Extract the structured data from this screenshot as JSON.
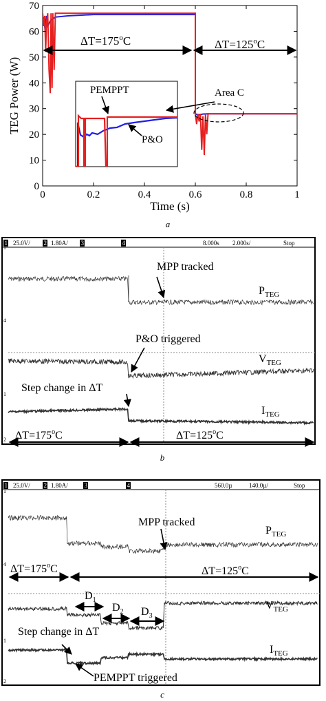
{
  "panels": {
    "a": {
      "label": "a",
      "chart_data": {
        "type": "line",
        "ylabel": "TEG Power (W)",
        "xlabel": "Time (s)",
        "xlim": [
          0,
          1
        ],
        "ylim": [
          0,
          70
        ],
        "xticks": [
          "0",
          "0.2",
          "0.4",
          "0.6",
          "0.8",
          "1"
        ],
        "yticks": [
          "0",
          "10",
          "20",
          "30",
          "40",
          "50",
          "60",
          "70"
        ],
        "grid": false,
        "annotations": {
          "dt1": "ΔT=175",
          "dt2": "ΔT=125",
          "deg_c": "C",
          "deg_o": "o",
          "area": "Area C",
          "pemppt": "PEMPPT",
          "po": "P&O"
        },
        "series": [
          {
            "name": "P&O",
            "color": "#1f1fe6",
            "x": [
              0,
              0.005,
              0.01,
              0.015,
              0.02,
              0.03,
              0.05,
              0.1,
              0.2,
              0.3,
              0.6,
              0.6,
              0.61,
              0.62,
              0.63,
              0.65,
              0.7,
              1.0
            ],
            "y": [
              62,
              65.5,
              60,
              66,
              62,
              64,
              65.5,
              66,
              66.5,
              66.5,
              66.5,
              28,
              27.5,
              27.7,
              27.9,
              28,
              28,
              28
            ]
          },
          {
            "name": "PEMPPT",
            "color": "#e61f1f",
            "x": [
              0,
              0.005,
              0.008,
              0.012,
              0.015,
              0.02,
              0.025,
              0.03,
              0.033,
              0.037,
              0.04,
              0.045,
              0.05,
              0.1,
              0.2,
              0.3,
              0.5,
              0.6,
              0.6,
              0.605,
              0.61,
              0.615,
              0.62,
              0.625,
              0.63,
              0.635,
              0.64,
              0.645,
              0.65,
              0.66,
              0.7,
              1.0
            ],
            "y": [
              67,
              62,
              66,
              52,
              63,
              67,
              45,
              36,
              67,
              38,
              67,
              45,
              67,
              67,
              67,
              67,
              67,
              67,
              28,
              24,
              28,
              25,
              28,
              14,
              27,
              12,
              28,
              20,
              28,
              28,
              28,
              28
            ]
          }
        ]
      }
    },
    "b": {
      "label": "b",
      "scope": {
        "ch1": "1",
        "ch1_scale": "25.0V/",
        "ch2": "2",
        "ch2_scale": "1.80A/",
        "ch3": "3",
        "ch4": "4",
        "delay": "8.000s",
        "timebase": "2.000s/",
        "status": "Stop"
      },
      "labels": {
        "mpp": "MPP tracked",
        "po": "P&O triggered",
        "step": "Step change in ΔT",
        "p": "P",
        "p_sub": "TEG",
        "v": "V",
        "v_sub": "TEG",
        "i": "I",
        "i_sub": "TEG",
        "dt1": "ΔT=175",
        "dt2": "ΔT=125",
        "deg_c": "C",
        "deg_o": "o"
      }
    },
    "c": {
      "label": "c",
      "scope": {
        "ch1": "1",
        "ch1_scale": "25.0V/",
        "ch2": "2",
        "ch2_scale": "1.80A/",
        "ch3": "3",
        "ch4": "4",
        "delay": "560.0µ",
        "timebase": "140.0µ/",
        "status": "Stop"
      },
      "labels": {
        "mpp": "MPP tracked",
        "pemppt": "PEMPPT triggered",
        "step": "Step change in ΔT",
        "p": "P",
        "p_sub": "TEG",
        "v": "V",
        "v_sub": "TEG",
        "i": "I",
        "i_sub": "TEG",
        "dt1": "ΔT=175",
        "dt2": "ΔT=125",
        "deg_c": "C",
        "deg_o": "o",
        "d": "D",
        "d1": "1",
        "d2": "2",
        "d3": "3"
      }
    }
  }
}
